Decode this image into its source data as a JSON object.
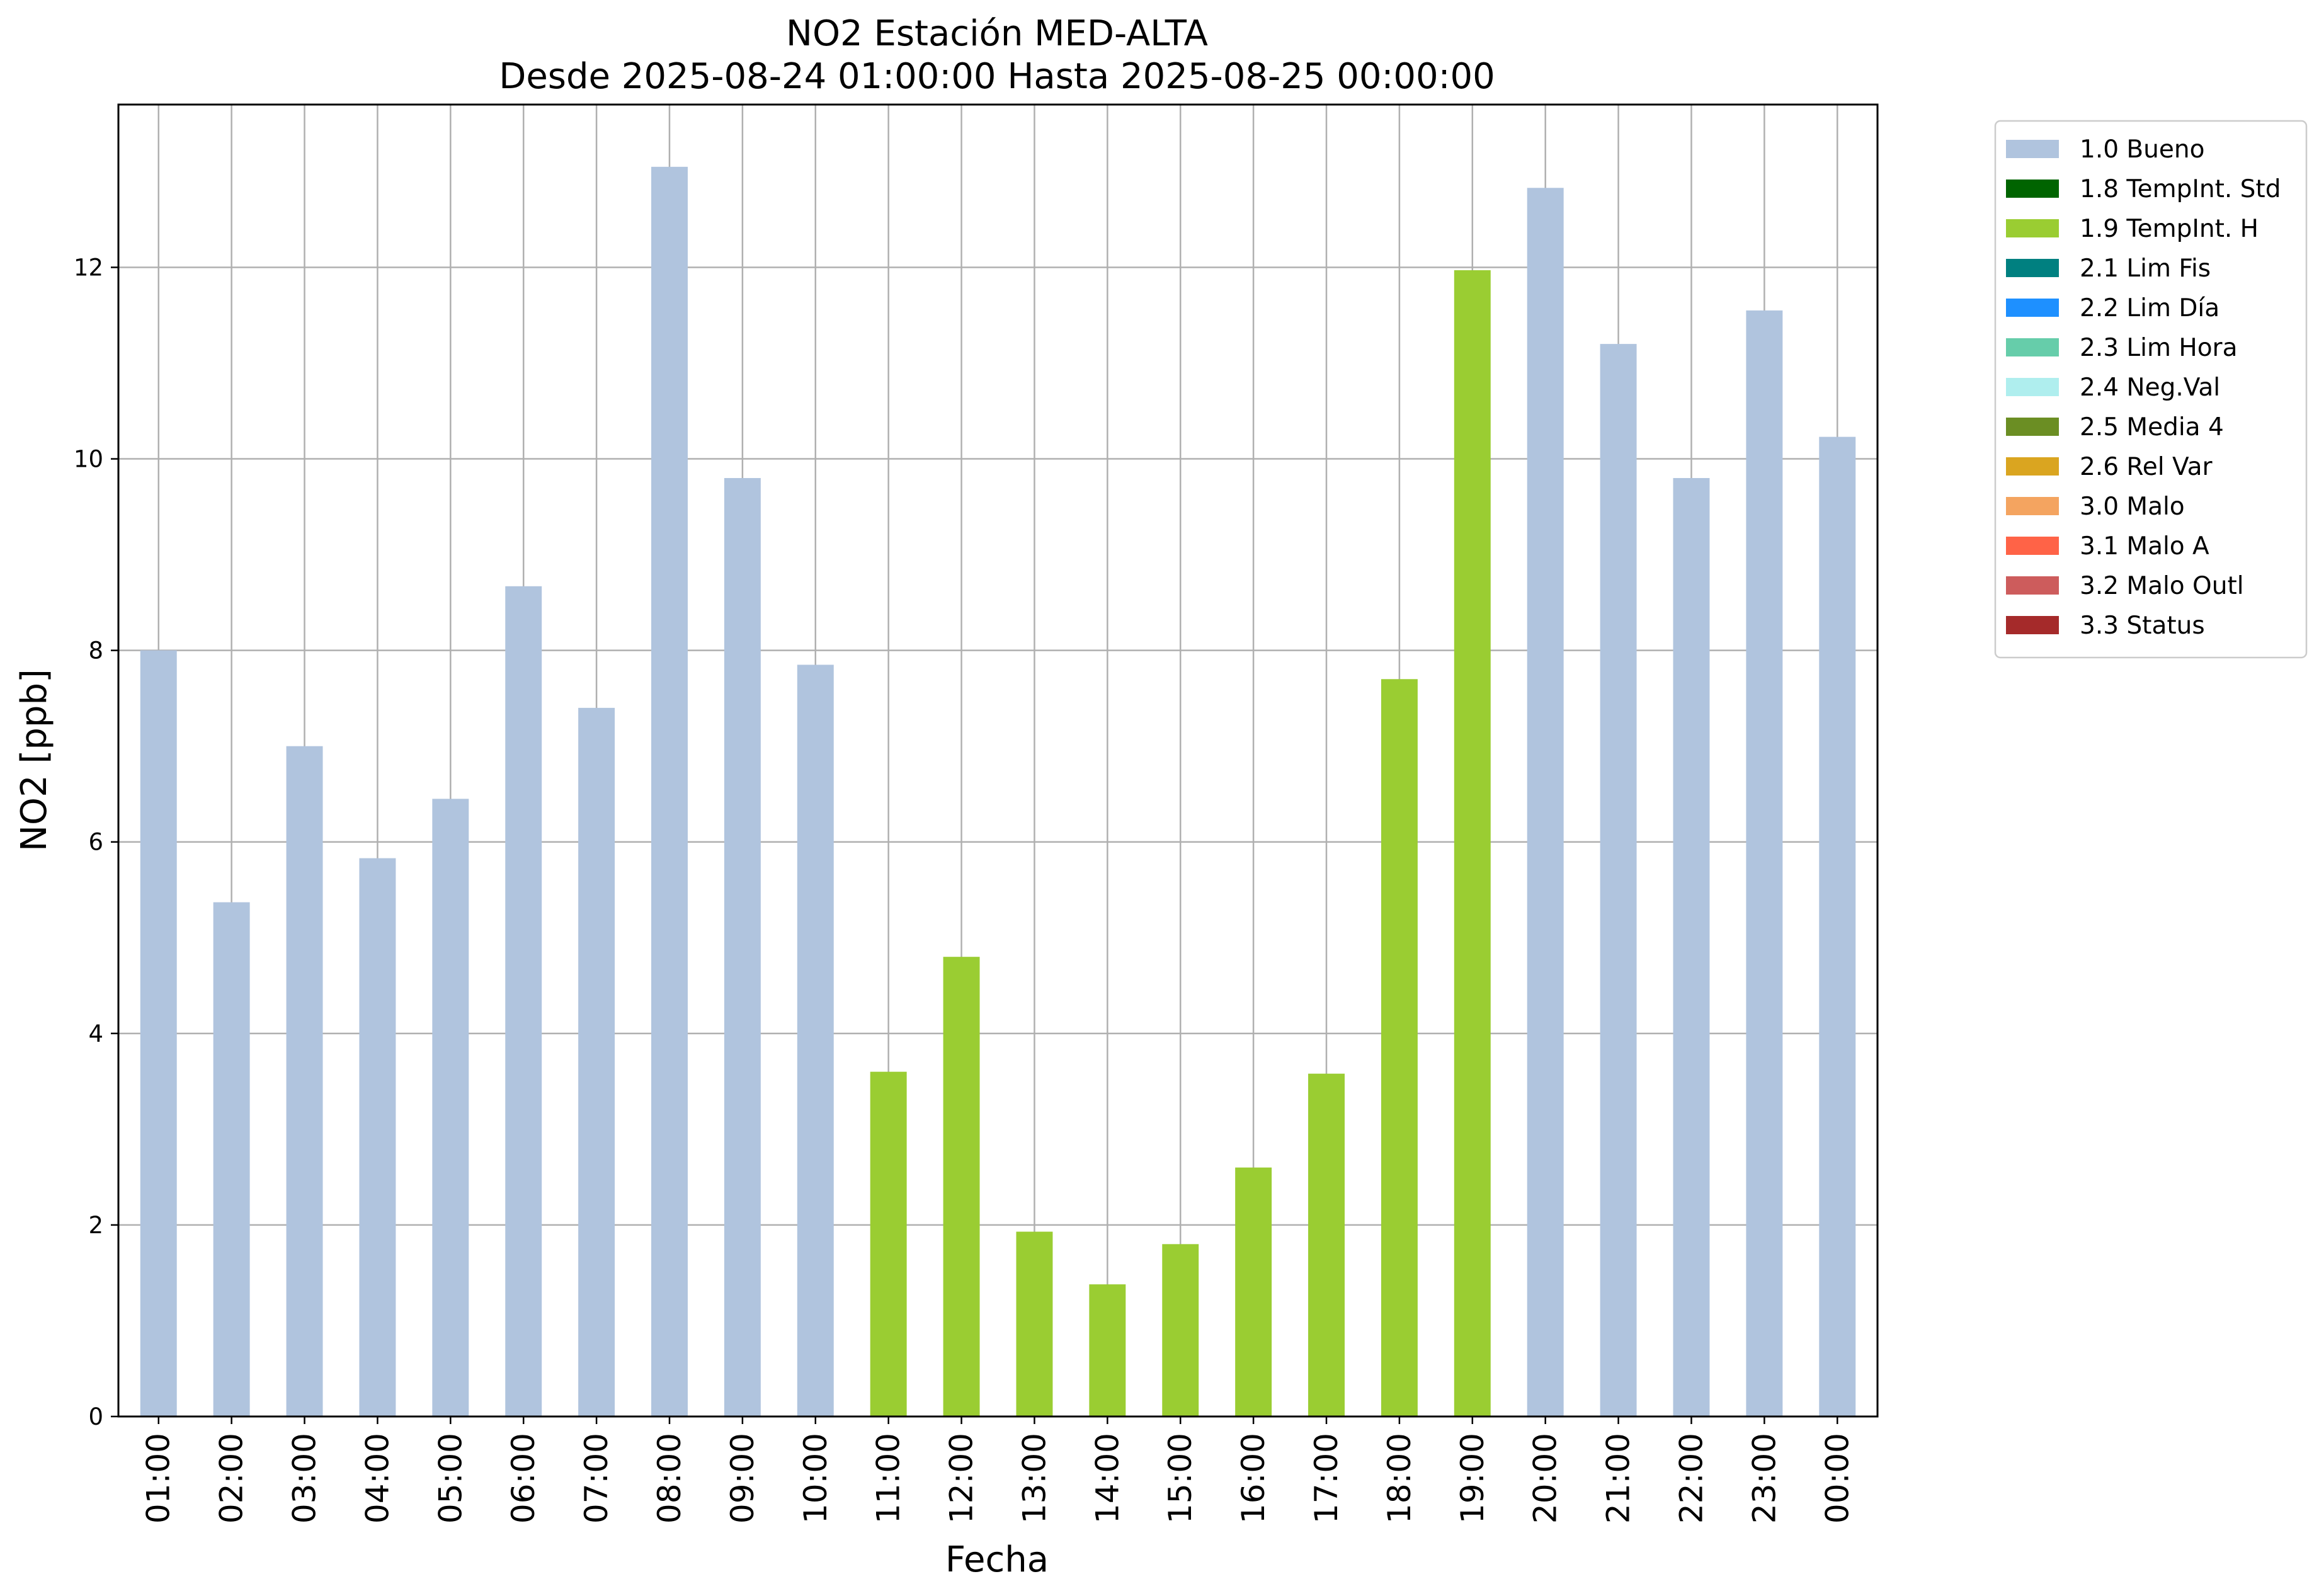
{
  "chart_data": {
    "type": "bar",
    "title": "NO2 Estación MED-ALTA",
    "subtitle": "Desde 2025-08-24 01:00:00 Hasta 2025-08-25 00:00:00",
    "xlabel": "Fecha",
    "ylabel": "NO2 [ppb]",
    "ylim": [
      0,
      13.7
    ],
    "yticks": [
      "0",
      "2",
      "4",
      "6",
      "8",
      "10",
      "12"
    ],
    "grid": true,
    "legend_position": "outside-top-right",
    "categories": [
      "01:00",
      "02:00",
      "03:00",
      "04:00",
      "05:00",
      "06:00",
      "07:00",
      "08:00",
      "09:00",
      "10:00",
      "11:00",
      "12:00",
      "13:00",
      "14:00",
      "15:00",
      "16:00",
      "17:00",
      "18:00",
      "19:00",
      "20:00",
      "21:00",
      "22:00",
      "23:00",
      "00:00"
    ],
    "values": [
      8.0,
      5.37,
      7.0,
      5.83,
      6.45,
      8.67,
      7.4,
      13.05,
      9.8,
      7.85,
      3.6,
      4.8,
      1.93,
      1.38,
      1.8,
      2.6,
      3.58,
      7.7,
      11.97,
      12.83,
      11.2,
      9.8,
      11.55,
      10.23
    ],
    "flags": [
      "1.0 Bueno",
      "1.0 Bueno",
      "1.0 Bueno",
      "1.0 Bueno",
      "1.0 Bueno",
      "1.0 Bueno",
      "1.0 Bueno",
      "1.0 Bueno",
      "1.0 Bueno",
      "1.0 Bueno",
      "1.9 TempInt. H",
      "1.9 TempInt. H",
      "1.9 TempInt. H",
      "1.9 TempInt. H",
      "1.9 TempInt. H",
      "1.9 TempInt. H",
      "1.9 TempInt. H",
      "1.9 TempInt. H",
      "1.9 TempInt. H",
      "1.0 Bueno",
      "1.0 Bueno",
      "1.0 Bueno",
      "1.0 Bueno",
      "1.0 Bueno"
    ],
    "legend": [
      {
        "name": "1.0 Bueno",
        "color": "#b0c4de"
      },
      {
        "name": "1.8 TempInt. Std",
        "color": "#006400"
      },
      {
        "name": "1.9 TempInt. H",
        "color": "#9acd32"
      },
      {
        "name": "2.1 Lim Fis",
        "color": "#008080"
      },
      {
        "name": "2.2 Lim Día",
        "color": "#1e90ff"
      },
      {
        "name": "2.3 Lim Hora",
        "color": "#66cdaa"
      },
      {
        "name": "2.4 Neg.Val",
        "color": "#afeeee"
      },
      {
        "name": "2.5 Media 4",
        "color": "#6b8e23"
      },
      {
        "name": "2.6 Rel Var",
        "color": "#daa520"
      },
      {
        "name": "3.0 Malo",
        "color": "#f4a460"
      },
      {
        "name": "3.1 Malo A",
        "color": "#ff6347"
      },
      {
        "name": "3.2 Malo Outl",
        "color": "#cd5c5c"
      },
      {
        "name": "3.3 Status",
        "color": "#a52a2a"
      }
    ]
  }
}
